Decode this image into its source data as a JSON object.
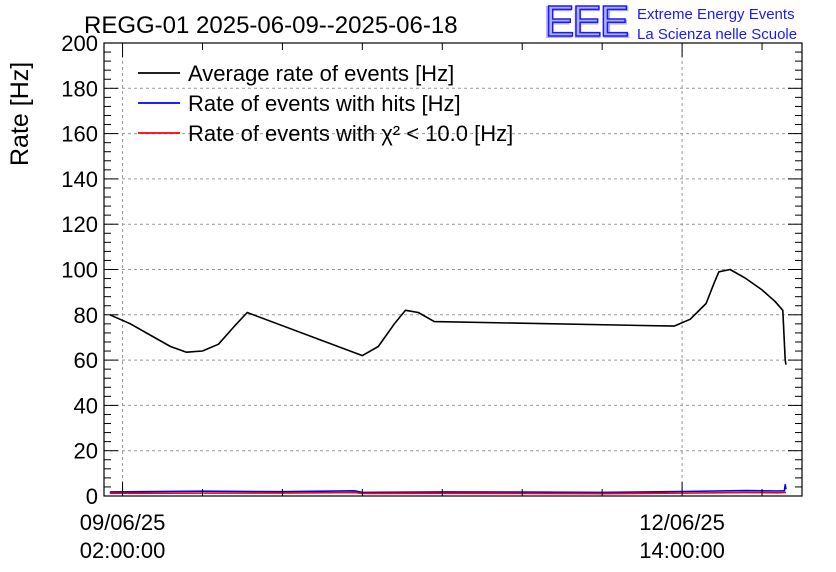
{
  "title": "REGG-01 2025-06-09--2025-06-18",
  "logo": {
    "mark": "EEE",
    "line1": "Extreme Energy Events",
    "line2": "La Scienza nelle Scuole",
    "color": "#1a1aff"
  },
  "chart_data": {
    "type": "line",
    "title": "REGG-01 2025-06-09--2025-06-18",
    "ylabel": "Rate [Hz]",
    "xlabel": "",
    "ylim": [
      0,
      200
    ],
    "xlim": [
      -0.116,
      4.25
    ],
    "yticks": [
      0,
      20,
      40,
      60,
      80,
      100,
      120,
      140,
      160,
      180,
      200
    ],
    "xticks": [
      {
        "x": 0,
        "date": "09/06/25",
        "time": "02:00:00"
      },
      {
        "x": 3.5,
        "date": "12/06/25",
        "time": "14:00:00"
      }
    ],
    "grid": true,
    "legend_position": "top-left",
    "series": [
      {
        "name": "Average rate of events [Hz]",
        "color": "#000000",
        "x": [
          -0.08,
          0.05,
          0.2,
          0.3,
          0.4,
          0.5,
          0.6,
          0.7,
          0.78,
          1.5,
          1.6,
          1.7,
          1.77,
          1.85,
          1.95,
          3.45,
          3.55,
          3.65,
          3.7,
          3.73,
          3.8,
          3.9,
          4.0,
          4.08,
          4.13,
          4.145,
          4.15
        ],
        "y": [
          80,
          76,
          70,
          66,
          63.5,
          64,
          67,
          75,
          81,
          62,
          66,
          76,
          82,
          81,
          77,
          75,
          78,
          85,
          94,
          99,
          100,
          96,
          91,
          86,
          82,
          60,
          58
        ]
      },
      {
        "name": "Rate of events with hits [Hz]",
        "color": "#0000ff",
        "x": [
          -0.08,
          0.5,
          1.0,
          1.45,
          1.5,
          2.0,
          2.5,
          3.0,
          3.5,
          3.9,
          4.1,
          4.14,
          4.145,
          4.15
        ],
        "y": [
          1.8,
          2.1,
          1.9,
          2.3,
          1.6,
          1.8,
          1.7,
          1.6,
          2.0,
          2.4,
          2.2,
          2.3,
          5,
          3
        ]
      },
      {
        "name": "Rate of events with χ² < 10.0 [Hz]",
        "color": "#ff0000",
        "x": [
          -0.08,
          0.5,
          1.0,
          1.45,
          1.5,
          2.0,
          2.5,
          3.0,
          3.5,
          3.9,
          4.1,
          4.15
        ],
        "y": [
          1.2,
          1.3,
          1.3,
          1.5,
          1.1,
          1.2,
          1.1,
          1.0,
          1.3,
          1.5,
          1.4,
          1.6
        ]
      }
    ]
  }
}
